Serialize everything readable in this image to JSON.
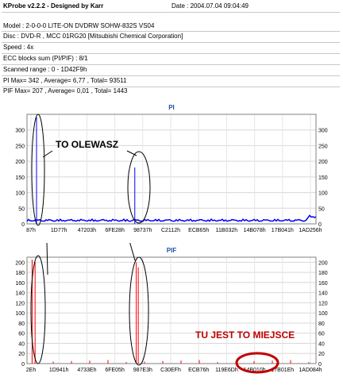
{
  "header": {
    "title": "KProbe v2.2.2 - Designed by Karr",
    "date": "Date : 2004.07.04 09:04:49"
  },
  "info": {
    "model": "Model : 2-0-0-0 LITE-ON DVDRW SOHW-832S  VS04",
    "disc": "Disc : DVD-R , MCC 01RG20  [Mitsubishi Chemical Corporation]",
    "speed": "Speed : 4x",
    "ecc": "ECC blocks sum (PI/PIF) : 8/1",
    "range": "Scanned range : 0 - 1D42F9h",
    "pi": "PI Max= 342 , Average= 6,77 , Total= 93511",
    "pif": "PIF Max= 207 , Average= 0,01 , Total= 1443"
  },
  "chart_data": [
    {
      "type": "line",
      "title": "PI",
      "ylim": [
        0,
        350
      ],
      "yticks": [
        0,
        50,
        100,
        150,
        200,
        250,
        300
      ],
      "x_tick_labels": [
        "87h",
        "1D77h",
        "47203h",
        "6FE28h",
        "98737h",
        "C2112h",
        "ECB65h",
        "11B032h",
        "14B078h",
        "17B041h",
        "1AD256h"
      ],
      "series_color": "#0000ff",
      "baseline_level": 15,
      "spikes": [
        {
          "x_fraction": 0.033,
          "value": 340
        },
        {
          "x_fraction": 0.373,
          "value": 180
        }
      ],
      "annotation": "TO OLEWASZ"
    },
    {
      "type": "line",
      "title": "PIF",
      "ylim": [
        0,
        210
      ],
      "yticks": [
        0,
        20,
        40,
        60,
        80,
        100,
        120,
        140,
        160,
        180,
        200
      ],
      "x_tick_labels": [
        "2Eh",
        "1D941h",
        "4733Eh",
        "6FE05h",
        "987E3h",
        "C30EFh",
        "ECB76h",
        "119E6Dh",
        "14B010h",
        "17B01Eh",
        "1AD084h"
      ],
      "series_color": "#ff0000",
      "spikes": [
        {
          "x_fraction": 0.018,
          "value": 205
        },
        {
          "x_fraction": 0.028,
          "value": 200
        },
        {
          "x_fraction": 0.378,
          "value": 200
        },
        {
          "x_fraction": 0.385,
          "value": 190
        }
      ],
      "annotation": "TU JEST TO MIEJSCE"
    }
  ]
}
